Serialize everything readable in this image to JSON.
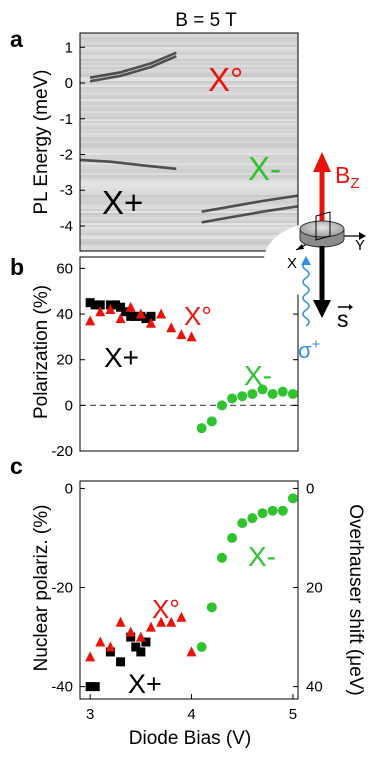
{
  "figure": {
    "panel_a_title": "B = 5 T",
    "xlabel": "Diode Bias (V)"
  },
  "inset": {
    "bz_label": "B",
    "bz_sub": "Z",
    "x_label": "X",
    "y_label": "Y",
    "s_label": "s",
    "sigma_label": "σ",
    "sigma_sup": "+",
    "colors": {
      "bz": "#e8140c",
      "s": "#000000",
      "sigma": "#3a8ee6"
    }
  },
  "chart_data": [
    {
      "panel": "a",
      "type": "heatmap",
      "title": "B = 5 T",
      "ylabel": "PL Energy (meV)",
      "xlim": [
        2.9,
        5.05
      ],
      "ylim": [
        -4.7,
        1.4
      ],
      "yticks": [
        1,
        0,
        -1,
        -2,
        -3,
        -4
      ],
      "ytick_labels": [
        "1",
        "0",
        "-1",
        "-2",
        "-3",
        "-4"
      ],
      "colormap": "grayscale, dark = high PL intensity",
      "lines": [
        {
          "name": "X°",
          "color": "#e8140c",
          "x": [
            3.0,
            3.3,
            3.6,
            3.85
          ],
          "y": [
            0.15,
            0.3,
            0.55,
            0.85
          ]
        },
        {
          "name": "X°",
          "color": "#e8140c",
          "x": [
            3.0,
            3.3,
            3.6,
            3.85
          ],
          "y": [
            0.05,
            0.2,
            0.45,
            0.75
          ]
        },
        {
          "name": "X+",
          "color": "#000000",
          "x": [
            2.9,
            3.2,
            3.5,
            3.85
          ],
          "y": [
            -2.15,
            -2.2,
            -2.3,
            -2.4
          ]
        },
        {
          "name": "X-",
          "color": "#2fc42f",
          "x": [
            4.1,
            4.4,
            4.7,
            5.05
          ],
          "y": [
            -3.6,
            -3.45,
            -3.3,
            -3.15
          ]
        },
        {
          "name": "X-",
          "color": "#2fc42f",
          "x": [
            4.1,
            4.4,
            4.7,
            5.05
          ],
          "y": [
            -3.9,
            -3.75,
            -3.6,
            -3.45
          ]
        }
      ],
      "labels": [
        {
          "text": "X°",
          "color": "#e8140c"
        },
        {
          "text": "X-",
          "color": "#2fc42f"
        },
        {
          "text": "X+",
          "color": "#000000"
        }
      ]
    },
    {
      "panel": "b",
      "type": "scatter",
      "ylabel": "Polarization (%)",
      "xlim": [
        2.9,
        5.05
      ],
      "ylim": [
        -20,
        65
      ],
      "yticks": [
        60,
        40,
        20,
        0,
        -20
      ],
      "ytick_labels": [
        "60",
        "40",
        "20",
        "0",
        "-20"
      ],
      "reference_line": {
        "y": 0,
        "style": "dashed",
        "color": "#555555"
      },
      "series": [
        {
          "name": "X+",
          "marker": "square",
          "color": "#000000",
          "x": [
            3.0,
            3.05,
            3.1,
            3.2,
            3.25,
            3.3,
            3.35,
            3.4,
            3.45,
            3.5,
            3.55,
            3.6
          ],
          "y": [
            45,
            44,
            44,
            44,
            44,
            43,
            41,
            39,
            39,
            39,
            38,
            39
          ]
        },
        {
          "name": "X°",
          "marker": "triangle",
          "color": "#e8140c",
          "x": [
            3.0,
            3.1,
            3.2,
            3.3,
            3.4,
            3.5,
            3.6,
            3.7,
            3.8,
            3.9,
            4.0
          ],
          "y": [
            37,
            41,
            42,
            38,
            43,
            40,
            36,
            40,
            34,
            31,
            30
          ]
        },
        {
          "name": "X-",
          "marker": "circle",
          "color": "#2fc42f",
          "x": [
            4.1,
            4.2,
            4.3,
            4.4,
            4.5,
            4.6,
            4.7,
            4.8,
            4.9,
            5.0
          ],
          "y": [
            -10,
            -7,
            0,
            3,
            4,
            5,
            7,
            5,
            6,
            5
          ]
        }
      ],
      "labels": [
        {
          "text": "X°",
          "color": "#e8140c"
        },
        {
          "text": "X+",
          "color": "#000000"
        },
        {
          "text": "X-",
          "color": "#2fc42f"
        }
      ]
    },
    {
      "panel": "c",
      "type": "scatter",
      "ylabel": "Nuclear polariz. (%)",
      "y2label": "Overhauser shift (μeV)",
      "xlim": [
        2.9,
        5.05
      ],
      "xticks": [
        3,
        4,
        5
      ],
      "xtick_labels": [
        "3",
        "4",
        "5"
      ],
      "ylim": [
        -42.5,
        1.5
      ],
      "yticks": [
        0,
        -20,
        -40
      ],
      "ytick_labels": [
        "0",
        "-20",
        "-40"
      ],
      "y2ticks": [
        0,
        20,
        40
      ],
      "y2tick_labels": [
        "0",
        "20",
        "40"
      ],
      "series": [
        {
          "name": "X+",
          "marker": "square",
          "color": "#000000",
          "x": [
            3.0,
            3.05,
            3.2,
            3.3,
            3.4,
            3.45,
            3.5,
            3.55
          ],
          "y": [
            -40,
            -40,
            -33,
            -35,
            -30,
            -32,
            -33,
            -31
          ]
        },
        {
          "name": "X°",
          "marker": "triangle",
          "color": "#e8140c",
          "x": [
            3.0,
            3.1,
            3.2,
            3.3,
            3.4,
            3.5,
            3.6,
            3.7,
            3.8,
            3.9,
            4.0
          ],
          "y": [
            -34,
            -31,
            -32,
            -27,
            -29,
            -30,
            -28,
            -27,
            -27,
            -26,
            -33
          ]
        },
        {
          "name": "X-",
          "marker": "circle",
          "color": "#2fc42f",
          "x": [
            4.1,
            4.2,
            4.3,
            4.4,
            4.5,
            4.6,
            4.7,
            4.8,
            4.9,
            5.0
          ],
          "y": [
            -32,
            -24,
            -14,
            -10,
            -7,
            -6,
            -5,
            -4.5,
            -4.5,
            -2
          ]
        }
      ],
      "labels": [
        {
          "text": "X°",
          "color": "#e8140c"
        },
        {
          "text": "X-",
          "color": "#2fc42f"
        },
        {
          "text": "X+",
          "color": "#000000"
        }
      ]
    }
  ]
}
